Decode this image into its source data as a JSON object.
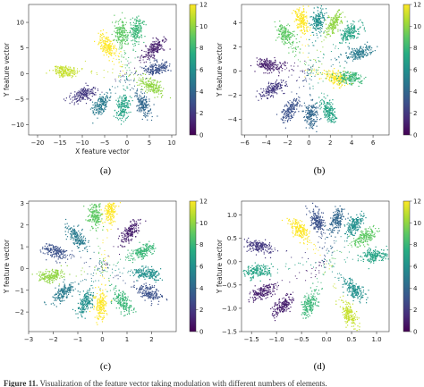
{
  "caption": {
    "label": "Figure 11.",
    "text": "Visualization of the feature vector taking modulation with different numbers of elements."
  },
  "colorbar": {
    "ticks": [
      0,
      2,
      4,
      6,
      8,
      10,
      12
    ],
    "range": [
      0,
      12
    ],
    "colormap": [
      "#440154",
      "#472c7a",
      "#3b518b",
      "#2c718e",
      "#21908d",
      "#27ad81",
      "#5cc863",
      "#aadc32",
      "#fde725"
    ]
  },
  "chart_data": [
    {
      "type": "scatter",
      "panel": "(a)",
      "xlabel": "X feature vector",
      "ylabel": "Y feature vector",
      "xlim": [
        -22,
        11
      ],
      "ylim": [
        -12,
        13.5
      ],
      "xticks": [
        -20,
        -15,
        -10,
        -5,
        0,
        5,
        10
      ],
      "yticks": [
        -10,
        -5,
        0,
        5,
        10
      ],
      "clusters": [
        {
          "class": 11,
          "cx": -14.0,
          "cy": 0.5
        },
        {
          "class": 12,
          "cx": -4.5,
          "cy": 5.5
        },
        {
          "class": 9,
          "cx": -1.5,
          "cy": 8.0
        },
        {
          "class": 8,
          "cx": 2.0,
          "cy": 8.5
        },
        {
          "class": 1,
          "cx": 6.0,
          "cy": 5.0
        },
        {
          "class": 3,
          "cx": 6.5,
          "cy": 1.0
        },
        {
          "class": 10,
          "cx": 5.5,
          "cy": -2.5
        },
        {
          "class": 4,
          "cx": 3.5,
          "cy": -6.0
        },
        {
          "class": 7,
          "cx": -1.0,
          "cy": -6.5
        },
        {
          "class": 5,
          "cx": -6.0,
          "cy": -6.0
        },
        {
          "class": 2,
          "cx": -10.0,
          "cy": -4.0
        }
      ]
    },
    {
      "type": "scatter",
      "panel": "(b)",
      "xlabel": "",
      "ylabel": "Y feature vector",
      "xlim": [
        -6.3,
        7.5
      ],
      "ylim": [
        -5.3,
        5.5
      ],
      "xticks": [
        -6,
        -4,
        -2,
        0,
        2,
        4,
        6
      ],
      "yticks": [
        -4,
        -2,
        0,
        2,
        4
      ],
      "clusters": [
        {
          "class": 12,
          "cx": -0.7,
          "cy": 4.3
        },
        {
          "class": 6,
          "cx": 0.8,
          "cy": 4.2
        },
        {
          "class": 10,
          "cx": 2.3,
          "cy": 4.0
        },
        {
          "class": 7,
          "cx": 3.8,
          "cy": 3.2
        },
        {
          "class": 5,
          "cx": 4.6,
          "cy": 1.5
        },
        {
          "class": 9,
          "cx": -2.2,
          "cy": 3.0
        },
        {
          "class": 1,
          "cx": -3.8,
          "cy": 0.5
        },
        {
          "class": 2,
          "cx": -3.5,
          "cy": -1.5
        },
        {
          "class": 3,
          "cx": -1.8,
          "cy": -3.2
        },
        {
          "class": 4,
          "cx": 0.2,
          "cy": -3.6
        },
        {
          "class": 7,
          "cx": 1.8,
          "cy": -3.3
        },
        {
          "class": 12,
          "cx": 2.6,
          "cy": -0.6
        },
        {
          "class": 8,
          "cx": 3.8,
          "cy": -0.5
        }
      ]
    },
    {
      "type": "scatter",
      "panel": "(c)",
      "xlabel": "",
      "ylabel": "Y feature vector",
      "xlim": [
        -3,
        3
      ],
      "ylim": [
        -2.9,
        3.1
      ],
      "xticks": [
        -3,
        -2,
        -1,
        0,
        1,
        2
      ],
      "yticks": [
        -2,
        -1,
        0,
        1,
        2,
        3
      ],
      "clusters": [
        {
          "class": 12,
          "cx": 0.3,
          "cy": 2.7
        },
        {
          "class": 9,
          "cx": -0.3,
          "cy": 2.5
        },
        {
          "class": 1,
          "cx": 1.1,
          "cy": 1.7
        },
        {
          "class": 5,
          "cx": -1.1,
          "cy": 1.5
        },
        {
          "class": 3,
          "cx": -1.9,
          "cy": 0.8
        },
        {
          "class": 8,
          "cx": 1.6,
          "cy": 0.8
        },
        {
          "class": 6,
          "cx": 1.8,
          "cy": -0.2
        },
        {
          "class": 10,
          "cx": -2.1,
          "cy": -0.3
        },
        {
          "class": 5,
          "cx": -1.6,
          "cy": -1.1
        },
        {
          "class": 3,
          "cx": 1.9,
          "cy": -1.1
        },
        {
          "class": 6,
          "cx": -0.7,
          "cy": -1.6
        },
        {
          "class": 8,
          "cx": 0.8,
          "cy": -1.5
        },
        {
          "class": 12,
          "cx": -0.1,
          "cy": -1.7
        }
      ]
    },
    {
      "type": "scatter",
      "panel": "(d)",
      "xlabel": "",
      "ylabel": "Y feature vector",
      "xlim": [
        -1.7,
        1.25
      ],
      "ylim": [
        -1.5,
        1.3
      ],
      "xticks": [
        -1.5,
        -1.0,
        -0.5,
        0.0,
        0.5,
        1.0
      ],
      "yticks": [
        -1.5,
        -1.0,
        -0.5,
        0.0,
        0.5,
        1.0
      ],
      "clusters": [
        {
          "class": 12,
          "cx": -0.55,
          "cy": 0.7
        },
        {
          "class": 3,
          "cx": -0.2,
          "cy": 0.9
        },
        {
          "class": 4,
          "cx": 0.2,
          "cy": 0.9
        },
        {
          "class": 6,
          "cx": 0.55,
          "cy": 0.8
        },
        {
          "class": 9,
          "cx": 0.75,
          "cy": 0.55
        },
        {
          "class": 7,
          "cx": 0.95,
          "cy": 0.15
        },
        {
          "class": 2,
          "cx": -1.35,
          "cy": 0.35
        },
        {
          "class": 7,
          "cx": -1.4,
          "cy": -0.2
        },
        {
          "class": 1,
          "cx": -1.3,
          "cy": -0.65
        },
        {
          "class": 1,
          "cx": -0.9,
          "cy": -0.95
        },
        {
          "class": 8,
          "cx": -0.35,
          "cy": -0.9
        },
        {
          "class": 11,
          "cx": 0.45,
          "cy": -1.15
        },
        {
          "class": 6,
          "cx": 0.55,
          "cy": -0.6
        }
      ]
    }
  ]
}
